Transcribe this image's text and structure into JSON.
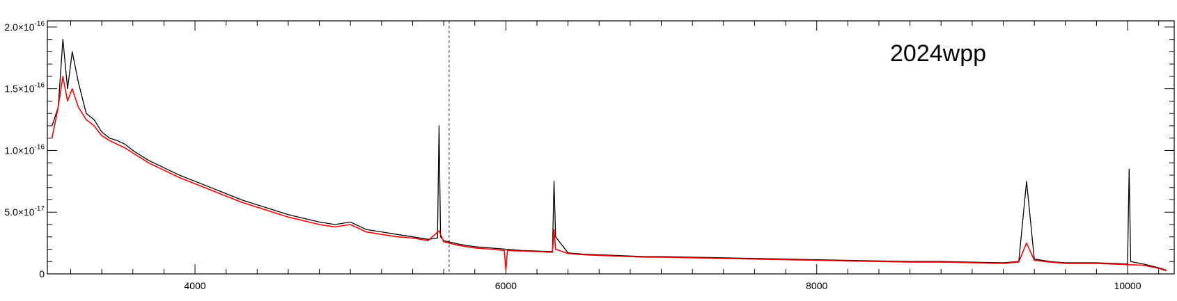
{
  "chart_data": {
    "type": "line",
    "title": "",
    "xlabel": "",
    "ylabel": "",
    "annotation": "2024wpp",
    "xlim": [
      3050,
      10300
    ],
    "ylim": [
      0,
      2.05e-16
    ],
    "x_ticks": [
      {
        "value": 4000,
        "label": "4000"
      },
      {
        "value": 6000,
        "label": "6000"
      },
      {
        "value": 8000,
        "label": "8000"
      },
      {
        "value": 10000,
        "label": "10000"
      }
    ],
    "y_ticks": [
      {
        "value": 0,
        "label": "0"
      },
      {
        "value": 5e-17,
        "mantissa": "5.0×10",
        "exponent": "-17"
      },
      {
        "value": 1e-16,
        "mantissa": "1.0×10",
        "exponent": "-16"
      },
      {
        "value": 1.5e-16,
        "mantissa": "1.5×10",
        "exponent": "-16"
      },
      {
        "value": 2e-16,
        "mantissa": "2.0×10",
        "exponent": "-16"
      }
    ],
    "vertical_marker": {
      "x": 5635,
      "style": "dashed"
    },
    "grid": false,
    "series": [
      {
        "color": "#000000",
        "x": [
          3080,
          3120,
          3150,
          3180,
          3210,
          3250,
          3300,
          3350,
          3400,
          3450,
          3500,
          3550,
          3600,
          3650,
          3700,
          3800,
          3900,
          4000,
          4100,
          4200,
          4300,
          4400,
          4500,
          4600,
          4700,
          4800,
          4900,
          5000,
          5100,
          5200,
          5300,
          5400,
          5500,
          5560,
          5570,
          5580,
          5600,
          5700,
          5800,
          5900,
          6000,
          6100,
          6200,
          6300,
          6310,
          6320,
          6400,
          6500,
          6600,
          6700,
          6800,
          6900,
          7000,
          7200,
          7400,
          7600,
          7800,
          8000,
          8200,
          8400,
          8600,
          8800,
          9000,
          9200,
          9300,
          9350,
          9400,
          9500,
          9600,
          9700,
          9800,
          9900,
          10000,
          10010,
          10020,
          10100,
          10200,
          10250
        ],
        "y": [
          1.2e-16,
          1.35e-16,
          1.9e-16,
          1.5e-16,
          1.8e-16,
          1.55e-16,
          1.3e-16,
          1.25e-16,
          1.15e-16,
          1.1e-16,
          1.08e-16,
          1.05e-16,
          1e-16,
          9.6e-17,
          9.2e-17,
          8.6e-17,
          8e-17,
          7.5e-17,
          7e-17,
          6.5e-17,
          6e-17,
          5.6e-17,
          5.2e-17,
          4.8e-17,
          4.5e-17,
          4.2e-17,
          4e-17,
          4.2e-17,
          3.6e-17,
          3.4e-17,
          3.2e-17,
          3e-17,
          2.8e-17,
          2.9e-17,
          1.2e-16,
          3e-17,
          2.7e-17,
          2.4e-17,
          2.2e-17,
          2.1e-17,
          2e-17,
          1.9e-17,
          1.85e-17,
          1.8e-17,
          7.5e-17,
          3e-17,
          1.7e-17,
          1.6e-17,
          1.55e-17,
          1.5e-17,
          1.45e-17,
          1.4e-17,
          1.4e-17,
          1.35e-17,
          1.3e-17,
          1.25e-17,
          1.2e-17,
          1.15e-17,
          1.1e-17,
          1.05e-17,
          1e-17,
          1e-17,
          9.5e-18,
          9e-18,
          1e-17,
          7.5e-17,
          1.2e-17,
          1e-17,
          9e-18,
          9e-18,
          9e-18,
          8.5e-18,
          8e-18,
          8.5e-17,
          1e-17,
          8e-18,
          5e-18,
          3e-18
        ]
      },
      {
        "color": "#ff0000",
        "x": [
          3080,
          3120,
          3150,
          3180,
          3210,
          3250,
          3300,
          3350,
          3400,
          3450,
          3500,
          3550,
          3600,
          3650,
          3700,
          3800,
          3900,
          4000,
          4100,
          4200,
          4300,
          4400,
          4500,
          4600,
          4700,
          4800,
          4900,
          5000,
          5100,
          5200,
          5300,
          5400,
          5500,
          5570,
          5600,
          5700,
          5800,
          5900,
          5990,
          6000,
          6010,
          6100,
          6200,
          6300,
          6310,
          6320,
          6400,
          6500,
          6600,
          6700,
          6800,
          6900,
          7000,
          7200,
          7400,
          7600,
          7800,
          8000,
          8200,
          8400,
          8600,
          8800,
          9000,
          9200,
          9300,
          9350,
          9400,
          9500,
          9600,
          9700,
          9800,
          9900,
          10000,
          10100,
          10200,
          10250
        ],
        "y": [
          1.1e-16,
          1.35e-16,
          1.6e-16,
          1.4e-16,
          1.5e-16,
          1.35e-16,
          1.25e-16,
          1.2e-16,
          1.12e-16,
          1.08e-16,
          1.05e-16,
          1.02e-16,
          9.8e-17,
          9.4e-17,
          9e-17,
          8.4e-17,
          7.8e-17,
          7.3e-17,
          6.8e-17,
          6.3e-17,
          5.8e-17,
          5.4e-17,
          5e-17,
          4.6e-17,
          4.3e-17,
          4e-17,
          3.8e-17,
          4e-17,
          3.4e-17,
          3.2e-17,
          3e-17,
          2.9e-17,
          2.7e-17,
          3.5e-17,
          2.6e-17,
          2.3e-17,
          2.1e-17,
          2e-17,
          1.9e-17,
          3e-18,
          1.9e-17,
          1.85e-17,
          1.8e-17,
          1.75e-17,
          3.6e-17,
          2e-17,
          1.65e-17,
          1.55e-17,
          1.5e-17,
          1.45e-17,
          1.4e-17,
          1.35e-17,
          1.35e-17,
          1.3e-17,
          1.25e-17,
          1.2e-17,
          1.15e-17,
          1.1e-17,
          1.05e-17,
          1e-17,
          9.5e-18,
          9.5e-18,
          9e-18,
          8.5e-18,
          9.5e-18,
          2.5e-17,
          1.1e-17,
          9.5e-18,
          8.5e-18,
          8.5e-18,
          8.5e-18,
          8e-18,
          7.5e-18,
          7e-18,
          4.5e-18,
          2.5e-18
        ]
      }
    ]
  }
}
